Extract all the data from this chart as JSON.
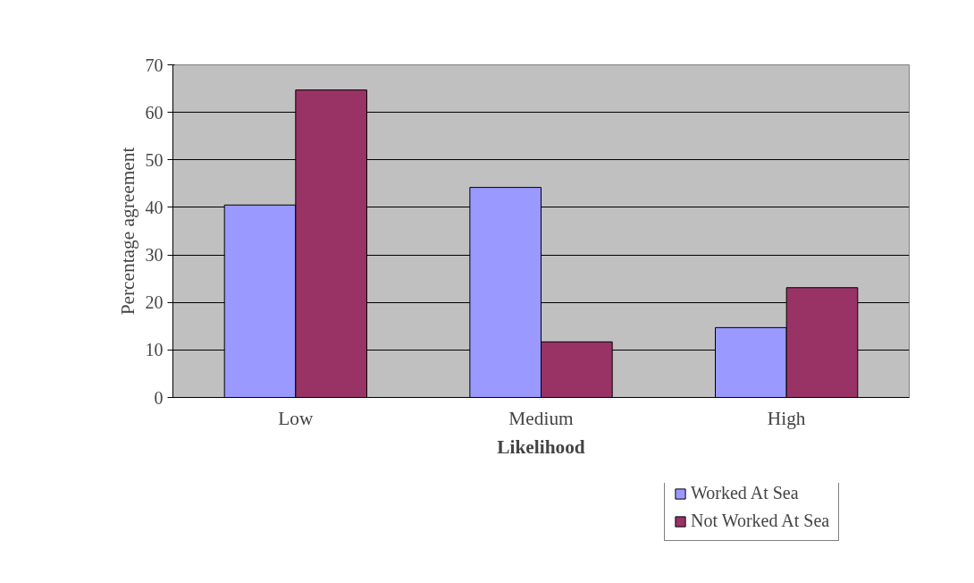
{
  "chart_data": {
    "type": "bar",
    "xlabel": "Likelihood",
    "ylabel": "Percentage agreement",
    "categories": [
      "Low",
      "Medium",
      "High"
    ],
    "series": [
      {
        "name": "Worked At Sea",
        "color": "#9999ff",
        "values": [
          40.5,
          44.2,
          14.7
        ]
      },
      {
        "name": "Not Worked At Sea",
        "color": "#993366",
        "values": [
          64.7,
          11.7,
          23.1
        ]
      }
    ],
    "ylim": [
      0,
      70
    ],
    "yticks": [
      0,
      10,
      20,
      30,
      40,
      50,
      60,
      70
    ],
    "grid": "y",
    "legend": "bottom right"
  }
}
